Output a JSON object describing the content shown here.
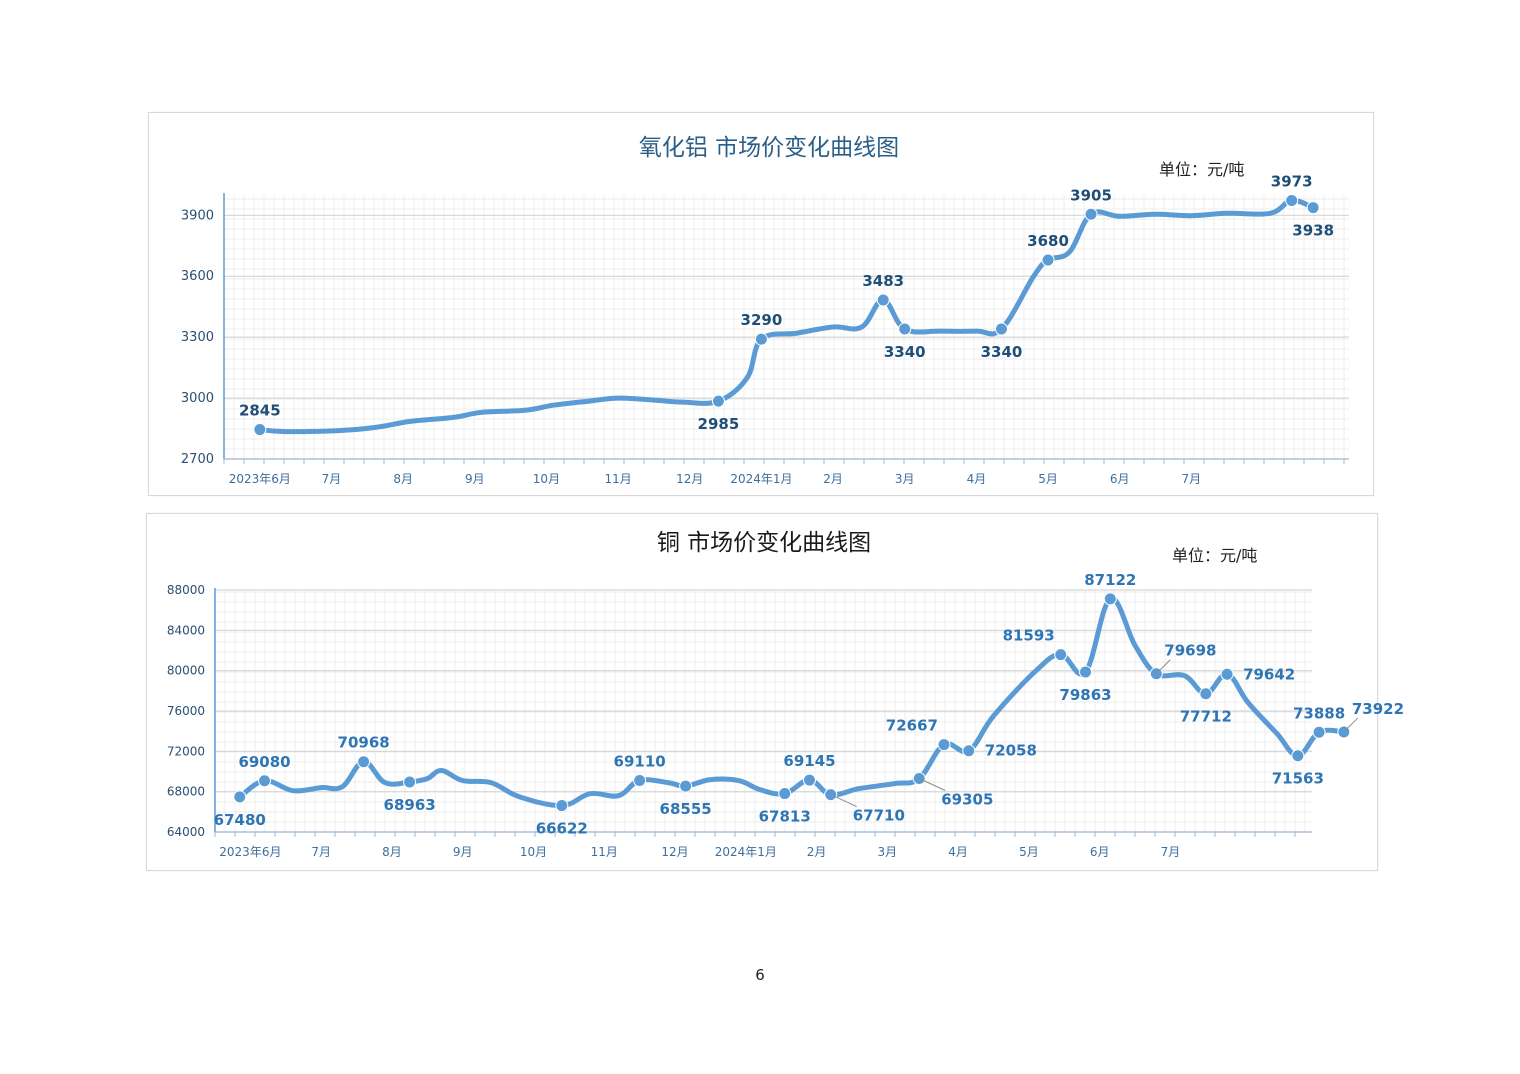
{
  "page_number": "6",
  "colors": {
    "line": "#5b9bd5",
    "point_label_0": "#1f4e79",
    "point_label_1": "#2e75b6",
    "title_0": "#2a5f8a",
    "title_1": "#1a1a1a",
    "axis_text": "#3d6f9e",
    "grid_minor": "#ececec",
    "grid_major": "#d6d6d6"
  },
  "chart_data": [
    {
      "type": "line",
      "title": "氧化铝  市场价变化曲线图",
      "unit_label": "单位：元/吨",
      "ylim": [
        2700,
        4000
      ],
      "yticks": [
        2700,
        3000,
        3300,
        3600,
        3900
      ],
      "xlim": [
        0,
        15.7
      ],
      "x_ticks": [
        {
          "x": 0.5,
          "label": "2023年6月"
        },
        {
          "x": 1.5,
          "label": "7月"
        },
        {
          "x": 2.5,
          "label": "8月"
        },
        {
          "x": 3.5,
          "label": "9月"
        },
        {
          "x": 4.5,
          "label": "10月"
        },
        {
          "x": 5.5,
          "label": "11月"
        },
        {
          "x": 6.5,
          "label": "12月"
        },
        {
          "x": 7.5,
          "label": "2024年1月"
        },
        {
          "x": 8.5,
          "label": "2月"
        },
        {
          "x": 9.5,
          "label": "3月"
        },
        {
          "x": 10.5,
          "label": "4月"
        },
        {
          "x": 11.5,
          "label": "5月"
        },
        {
          "x": 12.5,
          "label": "6月"
        },
        {
          "x": 13.5,
          "label": "7月"
        }
      ],
      "series": [
        {
          "points": [
            [
              0.5,
              2845
            ],
            [
              0.85,
              2835
            ],
            [
              1.6,
              2840
            ],
            [
              2.1,
              2855
            ],
            [
              2.6,
              2885
            ],
            [
              3.2,
              2905
            ],
            [
              3.6,
              2930
            ],
            [
              4.2,
              2940
            ],
            [
              4.6,
              2965
            ],
            [
              5.1,
              2985
            ],
            [
              5.5,
              3000
            ],
            [
              6.0,
              2990
            ],
            [
              6.4,
              2980
            ],
            [
              6.9,
              2985
            ],
            [
              7.3,
              3100
            ],
            [
              7.5,
              3290
            ],
            [
              8.0,
              3320
            ],
            [
              8.5,
              3350
            ],
            [
              8.9,
              3350
            ],
            [
              9.2,
              3483
            ],
            [
              9.5,
              3340
            ],
            [
              10.0,
              3330
            ],
            [
              10.5,
              3330
            ],
            [
              10.85,
              3340
            ],
            [
              11.3,
              3600
            ],
            [
              11.5,
              3680
            ],
            [
              11.8,
              3720
            ],
            [
              12.1,
              3905
            ],
            [
              12.5,
              3895
            ],
            [
              13.0,
              3905
            ],
            [
              13.5,
              3898
            ],
            [
              14.0,
              3910
            ],
            [
              14.6,
              3910
            ],
            [
              14.9,
              3973
            ],
            [
              15.2,
              3938
            ]
          ],
          "labeled": [
            {
              "x": 0.5,
              "y": 2845,
              "text": "2845",
              "pos": "above"
            },
            {
              "x": 6.9,
              "y": 2985,
              "text": "2985",
              "pos": "below"
            },
            {
              "x": 7.5,
              "y": 3290,
              "text": "3290",
              "pos": "above"
            },
            {
              "x": 9.2,
              "y": 3483,
              "text": "3483",
              "pos": "above"
            },
            {
              "x": 9.5,
              "y": 3340,
              "text": "3340",
              "pos": "below"
            },
            {
              "x": 10.85,
              "y": 3340,
              "text": "3340",
              "pos": "below"
            },
            {
              "x": 11.5,
              "y": 3680,
              "text": "3680",
              "pos": "above"
            },
            {
              "x": 12.1,
              "y": 3905,
              "text": "3905",
              "pos": "above"
            },
            {
              "x": 14.9,
              "y": 3973,
              "text": "3973",
              "pos": "above"
            },
            {
              "x": 15.2,
              "y": 3938,
              "text": "3938",
              "pos": "below"
            }
          ]
        }
      ]
    },
    {
      "type": "line",
      "title": "铜  市场价变化曲线图",
      "unit_label": "单位：元/吨",
      "ylim": [
        64000,
        88000
      ],
      "yticks": [
        64000,
        68000,
        72000,
        76000,
        80000,
        84000,
        88000
      ],
      "xlim": [
        0,
        15.5
      ],
      "x_ticks": [
        {
          "x": 0.5,
          "label": "2023年6月"
        },
        {
          "x": 1.5,
          "label": "7月"
        },
        {
          "x": 2.5,
          "label": "8月"
        },
        {
          "x": 3.5,
          "label": "9月"
        },
        {
          "x": 4.5,
          "label": "10月"
        },
        {
          "x": 5.5,
          "label": "11月"
        },
        {
          "x": 6.5,
          "label": "12月"
        },
        {
          "x": 7.5,
          "label": "2024年1月"
        },
        {
          "x": 8.5,
          "label": "2月"
        },
        {
          "x": 9.5,
          "label": "3月"
        },
        {
          "x": 10.5,
          "label": "4月"
        },
        {
          "x": 11.5,
          "label": "5月"
        },
        {
          "x": 12.5,
          "label": "6月"
        },
        {
          "x": 13.5,
          "label": "7月"
        }
      ],
      "series": [
        {
          "points": [
            [
              0.35,
              67480
            ],
            [
              0.7,
              69080
            ],
            [
              1.1,
              68100
            ],
            [
              1.5,
              68400
            ],
            [
              1.8,
              68500
            ],
            [
              2.1,
              70968
            ],
            [
              2.4,
              68900
            ],
            [
              2.75,
              68963
            ],
            [
              3.0,
              69300
            ],
            [
              3.2,
              70100
            ],
            [
              3.5,
              69100
            ],
            [
              3.9,
              68900
            ],
            [
              4.3,
              67500
            ],
            [
              4.9,
              66622
            ],
            [
              5.3,
              67800
            ],
            [
              5.7,
              67600
            ],
            [
              6.0,
              69110
            ],
            [
              6.4,
              68900
            ],
            [
              6.65,
              68555
            ],
            [
              7.0,
              69200
            ],
            [
              7.4,
              69100
            ],
            [
              7.7,
              68200
            ],
            [
              8.05,
              67813
            ],
            [
              8.4,
              69145
            ],
            [
              8.7,
              67710
            ],
            [
              9.1,
              68300
            ],
            [
              9.6,
              68800
            ],
            [
              9.95,
              69305
            ],
            [
              10.3,
              72667
            ],
            [
              10.65,
              72058
            ],
            [
              11.0,
              75500
            ],
            [
              11.6,
              80000
            ],
            [
              11.95,
              81593
            ],
            [
              12.3,
              79863
            ],
            [
              12.65,
              87122
            ],
            [
              13.0,
              82500
            ],
            [
              13.3,
              79698
            ],
            [
              13.7,
              79500
            ],
            [
              14.0,
              77712
            ],
            [
              14.3,
              79642
            ],
            [
              14.6,
              76800
            ],
            [
              15.0,
              73800
            ],
            [
              15.3,
              71563
            ],
            [
              15.6,
              73888
            ],
            [
              15.95,
              73922
            ]
          ],
          "labeled": [
            {
              "x": 0.35,
              "y": 67480,
              "text": "67480",
              "pos": "below"
            },
            {
              "x": 0.7,
              "y": 69080,
              "text": "69080",
              "pos": "above"
            },
            {
              "x": 2.1,
              "y": 70968,
              "text": "70968",
              "pos": "above"
            },
            {
              "x": 2.75,
              "y": 68963,
              "text": "68963",
              "pos": "below"
            },
            {
              "x": 4.9,
              "y": 66622,
              "text": "66622",
              "pos": "below"
            },
            {
              "x": 6.0,
              "y": 69110,
              "text": "69110",
              "pos": "above"
            },
            {
              "x": 6.65,
              "y": 68555,
              "text": "68555",
              "pos": "below"
            },
            {
              "x": 8.05,
              "y": 67813,
              "text": "67813",
              "pos": "below"
            },
            {
              "x": 8.4,
              "y": 69145,
              "text": "69145",
              "pos": "above"
            },
            {
              "x": 8.7,
              "y": 67710,
              "text": "67710",
              "pos": "below-right"
            },
            {
              "x": 9.95,
              "y": 69305,
              "text": "69305",
              "pos": "below-right"
            },
            {
              "x": 10.3,
              "y": 72667,
              "text": "72667",
              "pos": "above-left"
            },
            {
              "x": 10.65,
              "y": 72058,
              "text": "72058",
              "pos": "right"
            },
            {
              "x": 11.95,
              "y": 81593,
              "text": "81593",
              "pos": "above-left"
            },
            {
              "x": 12.3,
              "y": 79863,
              "text": "79863",
              "pos": "below"
            },
            {
              "x": 12.65,
              "y": 87122,
              "text": "87122",
              "pos": "above"
            },
            {
              "x": 13.3,
              "y": 79698,
              "text": "79698",
              "pos": "above-right"
            },
            {
              "x": 14.0,
              "y": 77712,
              "text": "77712",
              "pos": "below"
            },
            {
              "x": 14.3,
              "y": 79642,
              "text": "79642",
              "pos": "right"
            },
            {
              "x": 15.3,
              "y": 71563,
              "text": "71563",
              "pos": "below"
            },
            {
              "x": 15.6,
              "y": 73888,
              "text": "73888",
              "pos": "above"
            },
            {
              "x": 15.95,
              "y": 73922,
              "text": "73922",
              "pos": "above-right"
            }
          ]
        }
      ]
    }
  ]
}
